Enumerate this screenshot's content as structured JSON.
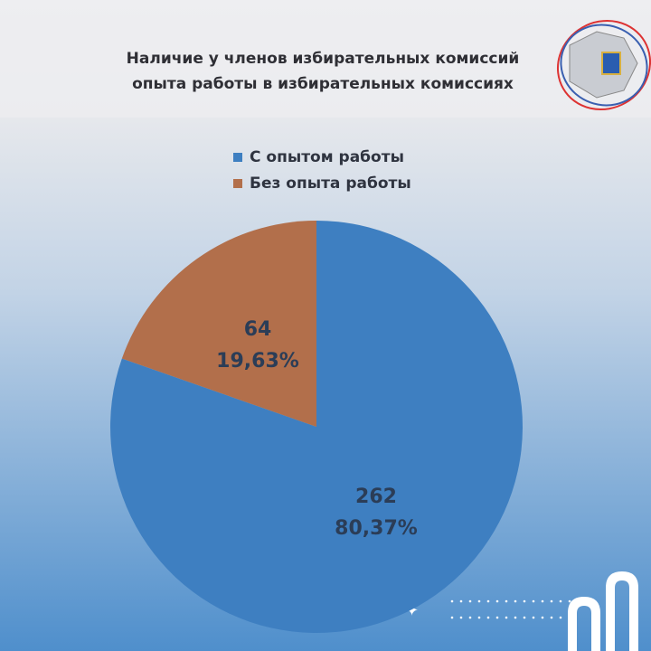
{
  "chart_data": {
    "type": "pie",
    "title": [
      "Наличие у членов избирательных комиссий",
      "опыта работы в избирательных комиссиях"
    ],
    "categories": [
      "С опытом работы",
      "Без опыта работы"
    ],
    "values": [
      262,
      64
    ],
    "percentages": [
      80.37,
      19.63
    ],
    "percentage_labels": [
      "80,37%",
      "19,63%"
    ],
    "colors": [
      "#3e7fc1",
      "#b26f4b"
    ],
    "legend": "top"
  }
}
